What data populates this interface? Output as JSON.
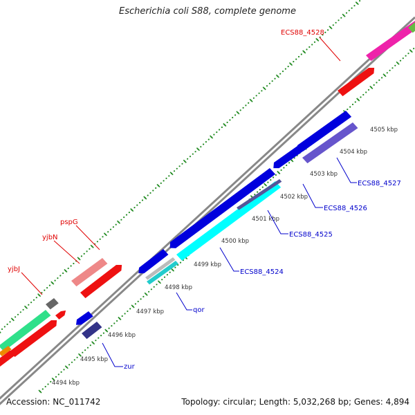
{
  "title": "Escherichia coli S88, complete genome",
  "footer": {
    "accession": "Accession: NC_011742",
    "summary": "Topology: circular; Length: 5,032,268 bp; Genes: 4,894"
  },
  "colors": {
    "backbone": "#888888",
    "tick_forward": "#228b22",
    "tick_reverse": "#228b22",
    "label_forward": "#e00000",
    "label_reverse": "#0000cc",
    "callout_forward": "#e00000",
    "callout_reverse": "#0000cc"
  },
  "scale_labels": [
    "4494 kbp",
    "4495 kbp",
    "4496 kbp",
    "4497 kbp",
    "4498 kbp",
    "4499 kbp",
    "4500 kbp",
    "4501 kbp",
    "4502 kbp",
    "4503 kbp",
    "4504 kbp",
    "4505 kbp"
  ],
  "forward_labels": [
    "yjbJ",
    "yjbN",
    "pspG",
    "ECS88_4528"
  ],
  "reverse_labels": [
    "zur",
    "qor",
    "ECS88_4524",
    "ECS88_4525",
    "ECS88_4526",
    "ECS88_4527"
  ],
  "features": [
    {
      "name": "fwd-outer-green",
      "color": "#2fe08a"
    },
    {
      "name": "fwd-outer-grey",
      "color": "#666666"
    },
    {
      "name": "fwd-outer-red-small",
      "color": "#ee1111"
    },
    {
      "name": "fwd-outer-orange",
      "color": "#ee8800"
    },
    {
      "name": "fwd-outer-red-left",
      "color": "#ee1111"
    },
    {
      "name": "fwd-inner-red-left",
      "color": "#ee1111"
    },
    {
      "name": "fwd-yjbN",
      "color": "#ee8888"
    },
    {
      "name": "fwd-pspG",
      "color": "#ee1111"
    },
    {
      "name": "fwd-yjbJ-arrow",
      "color": "#ee1111"
    },
    {
      "name": "fwd-ECS88_4528-inner",
      "color": "#ee1111"
    },
    {
      "name": "fwd-ECS88_4528-outer",
      "color": "#ee22aa"
    },
    {
      "name": "fwd-top-green",
      "color": "#66bb44"
    },
    {
      "name": "rev-zur-upper",
      "color": "#0000dd"
    },
    {
      "name": "rev-zur-lower",
      "color": "#333388"
    },
    {
      "name": "rev-qor-gene",
      "color": "#0000dd"
    },
    {
      "name": "rev-qor-cds",
      "color": "#22cccc"
    },
    {
      "name": "rev-ECS88_4524-gene",
      "color": "#0000dd"
    },
    {
      "name": "rev-ECS88_4524-cds",
      "color": "#00ffff"
    },
    {
      "name": "rev-ECS88_4525-cds",
      "color": "#555599"
    },
    {
      "name": "rev-ECS88_4526-gene",
      "color": "#0000dd"
    },
    {
      "name": "rev-ECS88_4527-gene",
      "color": "#0000dd"
    },
    {
      "name": "rev-ECS88_4527-cds",
      "color": "#6655cc"
    },
    {
      "name": "rev-small-grey",
      "color": "#bbbbbb"
    }
  ]
}
